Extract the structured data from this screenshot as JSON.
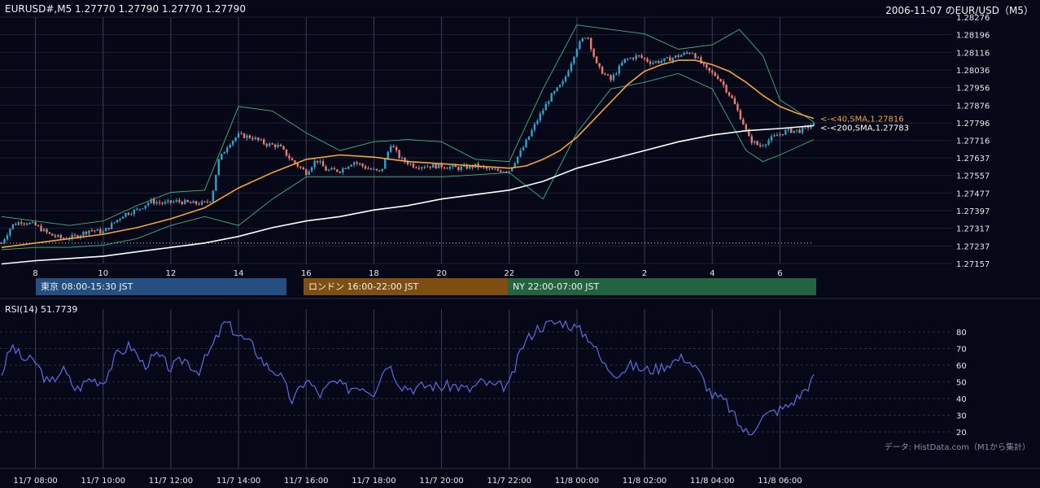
{
  "header": {
    "symbol_ohlc": "EURUSD#,M5 1.27770 1.27790 1.27770 1.27790",
    "date_title": "2006-11-07 のEUR/USD（M5）"
  },
  "sessions": [
    {
      "label": "東京 08:00-15:30 JST",
      "color": "#254f80"
    },
    {
      "label": "ロンドン 16:00-22:00 JST",
      "color": "#7f4f12"
    },
    {
      "label": "NY 22:00-07:00 JST",
      "color": "#24633f"
    }
  ],
  "rsi_title": "RSI(14) 51.7739",
  "credit": "データ: HistData.com（M1から集計）",
  "colors": {
    "background": "#060818",
    "bull_candle": "#2ea3c8",
    "bear_candle": "#f07a70",
    "sma40": "#f5a33a",
    "sma200": "#ffffff",
    "bollinger": "#3fb27a",
    "rsi": "#5d6be0"
  },
  "chart_data": [
    {
      "type": "candlestick",
      "title": "EURUSD#,M5",
      "ylim": [
        1.27157,
        1.28276
      ],
      "y_ticks": [
        "1.28276",
        "1.28196",
        "1.28116",
        "1.28036",
        "1.27956",
        "1.27876",
        "1.27796",
        "1.27716",
        "1.27637",
        "1.27557",
        "1.27477",
        "1.27397",
        "1.27317",
        "1.27237",
        "1.27157"
      ],
      "x_ticks": [
        "8",
        "10",
        "12",
        "14",
        "16",
        "18",
        "20",
        "22",
        "0",
        "2",
        "4",
        "6"
      ],
      "x_tick_hours": [
        8,
        10,
        12,
        14,
        16,
        18,
        20,
        22,
        24,
        26,
        28,
        30
      ],
      "x_range_hours": [
        7.0,
        31.0
      ],
      "series": [
        {
          "name": "40,SMA",
          "last": 1.27816,
          "label": "<-<40,SMA,1.27816"
        },
        {
          "name": "200,SMA",
          "last": 1.27783,
          "label": "<-<200,SMA,1.27783"
        }
      ],
      "bollinger": true,
      "reference_line": 1.2725,
      "price_path": [
        [
          7.0,
          1.2725
        ],
        [
          7.3,
          1.2733
        ],
        [
          7.6,
          1.2735
        ],
        [
          8.0,
          1.2733
        ],
        [
          8.4,
          1.2729
        ],
        [
          8.8,
          1.2727
        ],
        [
          9.2,
          1.2728
        ],
        [
          9.6,
          1.2731
        ],
        [
          10.0,
          1.273
        ],
        [
          10.3,
          1.2734
        ],
        [
          10.6,
          1.2738
        ],
        [
          11.0,
          1.274
        ],
        [
          11.4,
          1.2744
        ],
        [
          11.8,
          1.2743
        ],
        [
          12.2,
          1.2744
        ],
        [
          12.6,
          1.2743
        ],
        [
          13.0,
          1.2743
        ],
        [
          13.2,
          1.2745
        ],
        [
          13.4,
          1.2762
        ],
        [
          13.7,
          1.277
        ],
        [
          14.0,
          1.2774
        ],
        [
          14.4,
          1.2773
        ],
        [
          14.8,
          1.277
        ],
        [
          15.2,
          1.2769
        ],
        [
          15.6,
          1.2762
        ],
        [
          16.0,
          1.2757
        ],
        [
          16.3,
          1.2763
        ],
        [
          16.6,
          1.2758
        ],
        [
          17.0,
          1.2758
        ],
        [
          17.4,
          1.2762
        ],
        [
          17.8,
          1.2759
        ],
        [
          18.2,
          1.2757
        ],
        [
          18.5,
          1.277
        ],
        [
          18.8,
          1.2763
        ],
        [
          19.2,
          1.276
        ],
        [
          19.6,
          1.276
        ],
        [
          20.0,
          1.276
        ],
        [
          20.5,
          1.2759
        ],
        [
          21.0,
          1.276
        ],
        [
          21.5,
          1.2758
        ],
        [
          22.0,
          1.2758
        ],
        [
          22.4,
          1.2768
        ],
        [
          22.8,
          1.278
        ],
        [
          23.2,
          1.2791
        ],
        [
          23.6,
          1.2798
        ],
        [
          24.0,
          1.2814
        ],
        [
          24.3,
          1.282
        ],
        [
          24.6,
          1.2805
        ],
        [
          25.0,
          1.2799
        ],
        [
          25.4,
          1.2808
        ],
        [
          25.8,
          1.281
        ],
        [
          26.2,
          1.2807
        ],
        [
          26.6,
          1.2808
        ],
        [
          27.0,
          1.281
        ],
        [
          27.4,
          1.2812
        ],
        [
          27.8,
          1.2804
        ],
        [
          28.2,
          1.28
        ],
        [
          28.6,
          1.279
        ],
        [
          28.9,
          1.278
        ],
        [
          29.1,
          1.2772
        ],
        [
          29.4,
          1.2769
        ],
        [
          29.8,
          1.2773
        ],
        [
          30.2,
          1.2776
        ],
        [
          30.6,
          1.2776
        ],
        [
          31.0,
          1.2779
        ]
      ],
      "sma40_path": [
        [
          7.0,
          1.2723
        ],
        [
          8.0,
          1.2725
        ],
        [
          9.0,
          1.2727
        ],
        [
          10.0,
          1.2729
        ],
        [
          11.0,
          1.2732
        ],
        [
          12.0,
          1.2736
        ],
        [
          13.0,
          1.2741
        ],
        [
          14.0,
          1.275
        ],
        [
          15.0,
          1.2757
        ],
        [
          16.0,
          1.2763
        ],
        [
          17.0,
          1.2765
        ],
        [
          18.0,
          1.2764
        ],
        [
          19.0,
          1.2762
        ],
        [
          20.0,
          1.2761
        ],
        [
          21.0,
          1.276
        ],
        [
          22.0,
          1.2759
        ],
        [
          22.5,
          1.276
        ],
        [
          23.0,
          1.2763
        ],
        [
          23.5,
          1.2767
        ],
        [
          24.0,
          1.2773
        ],
        [
          24.5,
          1.2781
        ],
        [
          25.0,
          1.2789
        ],
        [
          25.5,
          1.2797
        ],
        [
          26.0,
          1.2803
        ],
        [
          26.5,
          1.2806
        ],
        [
          27.0,
          1.2808
        ],
        [
          27.5,
          1.2808
        ],
        [
          28.0,
          1.2806
        ],
        [
          28.5,
          1.2803
        ],
        [
          29.0,
          1.2798
        ],
        [
          29.5,
          1.2792
        ],
        [
          30.0,
          1.2787
        ],
        [
          30.5,
          1.2784
        ],
        [
          31.0,
          1.27816
        ]
      ],
      "sma200_path": [
        [
          7.0,
          1.27155
        ],
        [
          8.0,
          1.2717
        ],
        [
          9.0,
          1.2718
        ],
        [
          10.0,
          1.2719
        ],
        [
          11.0,
          1.2721
        ],
        [
          12.0,
          1.2723
        ],
        [
          13.0,
          1.2725
        ],
        [
          14.0,
          1.2728
        ],
        [
          15.0,
          1.2732
        ],
        [
          16.0,
          1.2735
        ],
        [
          17.0,
          1.2737
        ],
        [
          18.0,
          1.274
        ],
        [
          19.0,
          1.2742
        ],
        [
          20.0,
          1.2745
        ],
        [
          21.0,
          1.2747
        ],
        [
          22.0,
          1.2749
        ],
        [
          22.5,
          1.2751
        ],
        [
          23.0,
          1.2753
        ],
        [
          23.5,
          1.2756
        ],
        [
          24.0,
          1.2759
        ],
        [
          25.0,
          1.2763
        ],
        [
          26.0,
          1.2767
        ],
        [
          27.0,
          1.2771
        ],
        [
          28.0,
          1.2774
        ],
        [
          29.0,
          1.2776
        ],
        [
          30.0,
          1.2777
        ],
        [
          31.0,
          1.27783
        ]
      ],
      "bb_upper": [
        [
          7.0,
          1.2737
        ],
        [
          8.0,
          1.2735
        ],
        [
          9.0,
          1.2733
        ],
        [
          10.0,
          1.2735
        ],
        [
          11.0,
          1.2742
        ],
        [
          12.0,
          1.2748
        ],
        [
          13.0,
          1.2749
        ],
        [
          14.0,
          1.2787
        ],
        [
          15.0,
          1.2785
        ],
        [
          16.0,
          1.2775
        ],
        [
          17.0,
          1.2767
        ],
        [
          18.0,
          1.2771
        ],
        [
          19.0,
          1.2772
        ],
        [
          20.0,
          1.2771
        ],
        [
          21.0,
          1.2763
        ],
        [
          22.0,
          1.2762
        ],
        [
          23.0,
          1.2795
        ],
        [
          24.0,
          1.2824
        ],
        [
          25.0,
          1.2822
        ],
        [
          26.0,
          1.282
        ],
        [
          27.0,
          1.2813
        ],
        [
          28.0,
          1.2815
        ],
        [
          28.8,
          1.2822
        ],
        [
          29.5,
          1.281
        ],
        [
          30.0,
          1.279
        ],
        [
          31.0,
          1.278
        ]
      ],
      "bb_lower": [
        [
          7.0,
          1.2722
        ],
        [
          8.0,
          1.2723
        ],
        [
          9.0,
          1.2723
        ],
        [
          10.0,
          1.2724
        ],
        [
          11.0,
          1.2727
        ],
        [
          12.0,
          1.2733
        ],
        [
          13.0,
          1.2737
        ],
        [
          14.0,
          1.2733
        ],
        [
          15.0,
          1.2745
        ],
        [
          16.0,
          1.2755
        ],
        [
          17.0,
          1.2755
        ],
        [
          18.0,
          1.2755
        ],
        [
          19.0,
          1.2755
        ],
        [
          20.0,
          1.2755
        ],
        [
          21.0,
          1.2756
        ],
        [
          22.0,
          1.2757
        ],
        [
          23.0,
          1.2745
        ],
        [
          24.0,
          1.2775
        ],
        [
          25.0,
          1.2795
        ],
        [
          26.0,
          1.2798
        ],
        [
          27.0,
          1.2802
        ],
        [
          28.0,
          1.2795
        ],
        [
          29.0,
          1.2767
        ],
        [
          29.5,
          1.2762
        ],
        [
          30.0,
          1.2765
        ],
        [
          31.0,
          1.2772
        ]
      ]
    },
    {
      "type": "line",
      "title": "RSI(14) 51.7739",
      "ylim": [
        13,
        90
      ],
      "y_ticks": [
        80,
        70,
        60,
        50,
        40,
        30,
        20
      ],
      "x_ticks": [
        "11/7 08:00",
        "11/7 10:00",
        "11/7 12:00",
        "11/7 14:00",
        "11/7 16:00",
        "11/7 18:00",
        "11/7 20:00",
        "11/7 22:00",
        "11/8 00:00",
        "11/8 02:00",
        "11/8 04:00",
        "11/8 06:00"
      ],
      "x_range_hours": [
        7.0,
        31.0
      ],
      "series": [
        {
          "name": "RSI(14)",
          "points": [
            [
              7.0,
              55
            ],
            [
              7.3,
              72
            ],
            [
              7.6,
              64
            ],
            [
              8.0,
              62
            ],
            [
              8.4,
              48
            ],
            [
              8.8,
              58
            ],
            [
              9.2,
              45
            ],
            [
              9.6,
              52
            ],
            [
              10.0,
              50
            ],
            [
              10.4,
              66
            ],
            [
              10.8,
              72
            ],
            [
              11.2,
              60
            ],
            [
              11.6,
              66
            ],
            [
              12.0,
              58
            ],
            [
              12.4,
              64
            ],
            [
              12.8,
              56
            ],
            [
              13.2,
              70
            ],
            [
              13.6,
              86
            ],
            [
              14.0,
              78
            ],
            [
              14.4,
              72
            ],
            [
              14.8,
              60
            ],
            [
              15.2,
              55
            ],
            [
              15.6,
              38
            ],
            [
              16.0,
              52
            ],
            [
              16.4,
              42
            ],
            [
              16.8,
              50
            ],
            [
              17.2,
              46
            ],
            [
              17.6,
              48
            ],
            [
              18.0,
              44
            ],
            [
              18.4,
              62
            ],
            [
              18.8,
              48
            ],
            [
              19.2,
              46
            ],
            [
              19.6,
              48
            ],
            [
              20.0,
              47
            ],
            [
              20.4,
              48
            ],
            [
              20.8,
              45
            ],
            [
              21.2,
              50
            ],
            [
              21.6,
              47
            ],
            [
              22.0,
              48
            ],
            [
              22.4,
              72
            ],
            [
              22.8,
              82
            ],
            [
              23.2,
              85
            ],
            [
              23.6,
              86
            ],
            [
              24.0,
              82
            ],
            [
              24.4,
              76
            ],
            [
              24.8,
              60
            ],
            [
              25.2,
              55
            ],
            [
              25.6,
              60
            ],
            [
              26.0,
              57
            ],
            [
              26.4,
              58
            ],
            [
              26.8,
              62
            ],
            [
              27.2,
              65
            ],
            [
              27.6,
              56
            ],
            [
              28.0,
              42
            ],
            [
              28.4,
              38
            ],
            [
              28.8,
              24
            ],
            [
              29.1,
              18
            ],
            [
              29.4,
              28
            ],
            [
              29.8,
              32
            ],
            [
              30.2,
              35
            ],
            [
              30.6,
              42
            ],
            [
              31.0,
              52
            ]
          ]
        }
      ]
    }
  ]
}
